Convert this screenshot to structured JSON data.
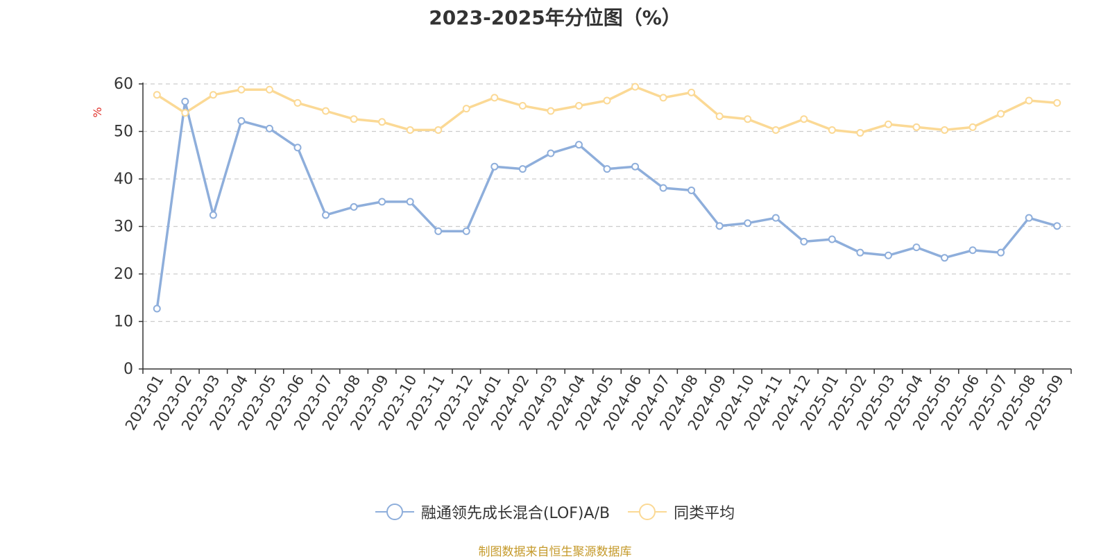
{
  "chart_data": {
    "type": "line",
    "title": "2023-2025年分位图（%）",
    "ylabel": "%",
    "ylim": [
      0,
      60
    ],
    "yticks": [
      0,
      10,
      20,
      30,
      40,
      50,
      60
    ],
    "grid": true,
    "legend_position": "bottom-center",
    "categories": [
      "2023-01",
      "2023-02",
      "2023-03",
      "2023-04",
      "2023-05",
      "2023-06",
      "2023-07",
      "2023-08",
      "2023-09",
      "2023-10",
      "2023-11",
      "2023-12",
      "2024-01",
      "2024-02",
      "2024-03",
      "2024-04",
      "2024-05",
      "2024-06",
      "2024-07",
      "2024-08",
      "2024-09",
      "2024-10",
      "2024-11",
      "2024-12",
      "2025-01",
      "2025-02",
      "2025-03",
      "2025-04",
      "2025-05",
      "2025-06",
      "2025-07",
      "2025-08",
      "2025-09"
    ],
    "series": [
      {
        "name": "融通领先成长混合(LOF)A/B",
        "color": "#8eaedb",
        "values": [
          12.7,
          56.3,
          32.4,
          52.2,
          50.6,
          46.6,
          32.4,
          34.1,
          35.2,
          35.2,
          29.0,
          29.0,
          42.6,
          42.1,
          45.4,
          47.2,
          42.1,
          42.6,
          38.1,
          37.6,
          30.1,
          30.7,
          31.8,
          26.8,
          27.3,
          24.5,
          23.9,
          25.6,
          23.4,
          25.0,
          24.5,
          31.8,
          30.1
        ]
      },
      {
        "name": "同类平均",
        "color": "#fbd995",
        "values": [
          57.7,
          53.9,
          57.7,
          58.8,
          58.8,
          56.0,
          54.3,
          52.6,
          52.0,
          50.3,
          50.3,
          54.8,
          57.1,
          55.4,
          54.3,
          55.4,
          56.5,
          59.4,
          57.1,
          58.2,
          53.2,
          52.6,
          50.3,
          52.6,
          50.3,
          49.7,
          51.5,
          50.9,
          50.3,
          50.9,
          53.7,
          56.5,
          56.0
        ]
      }
    ]
  },
  "source_note": "制图数据来自恒生聚源数据库"
}
